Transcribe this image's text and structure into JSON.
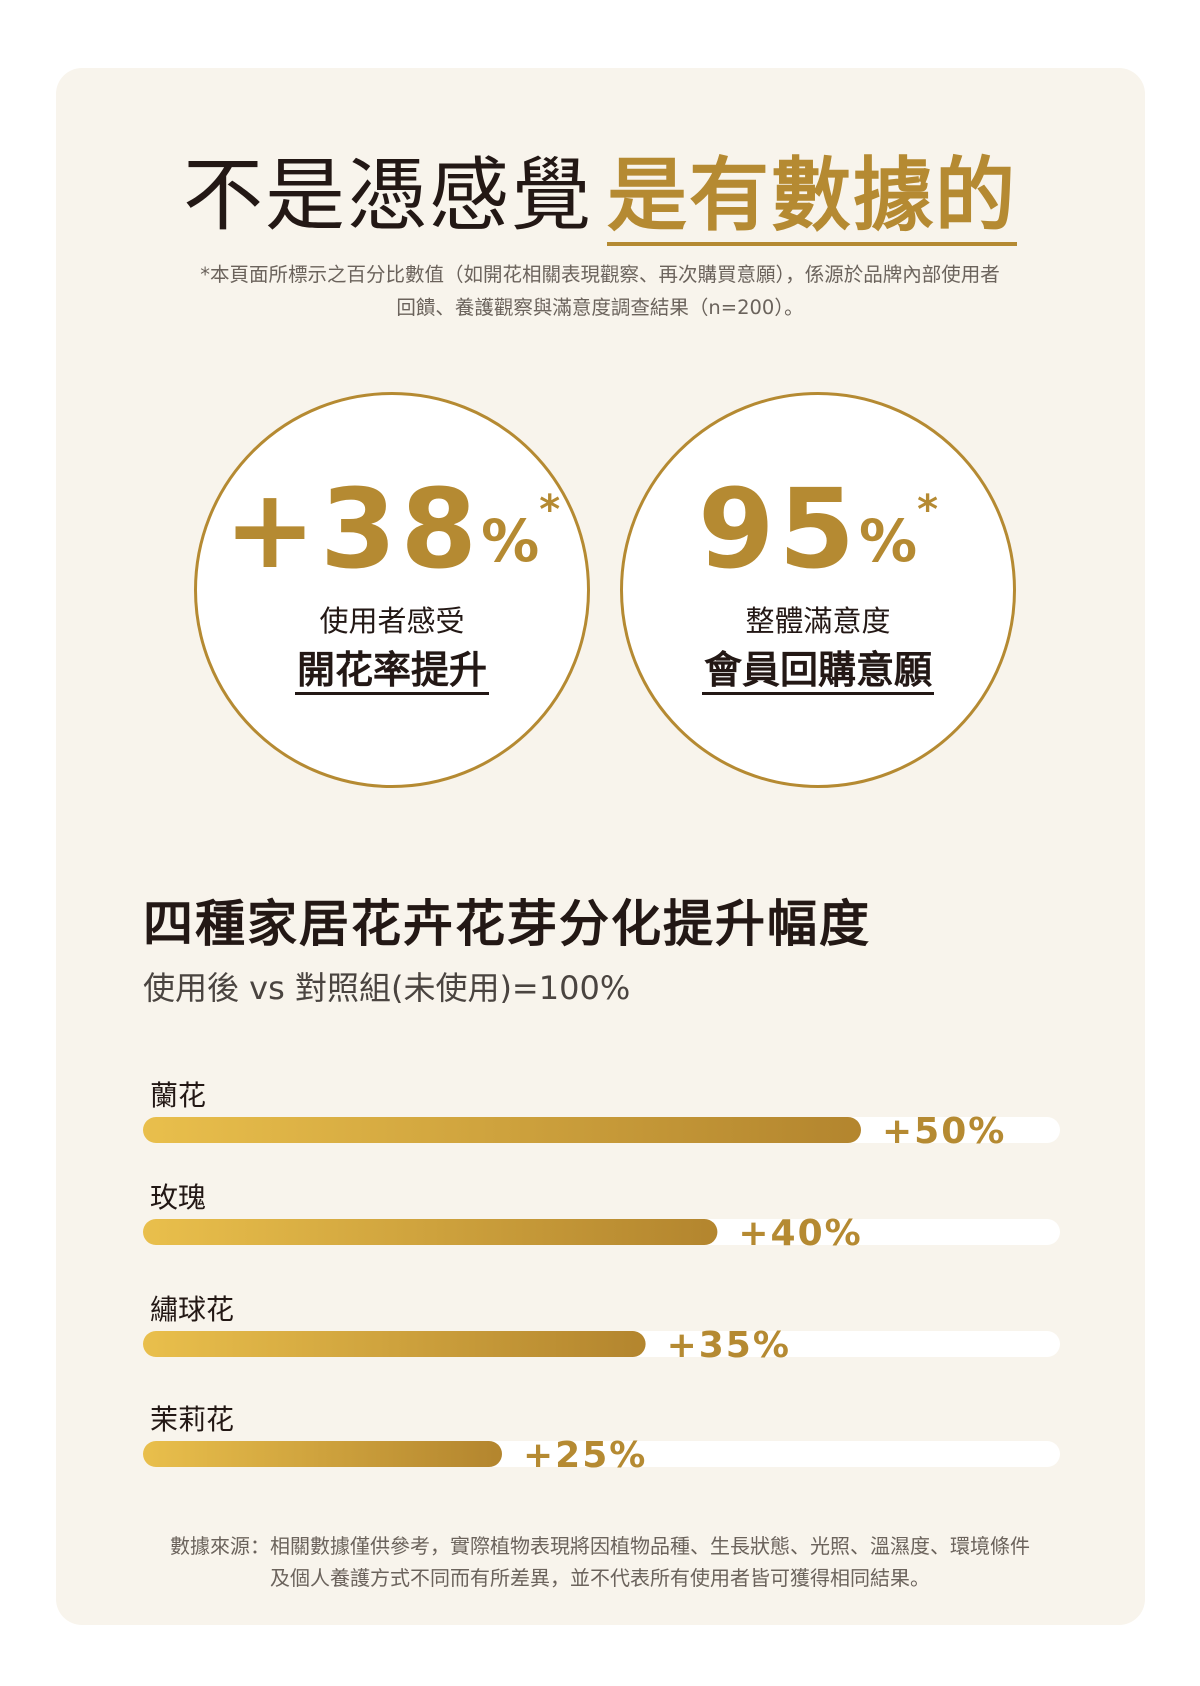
{
  "header": {
    "headline_plain": "不是憑感覺",
    "headline_accent": "是有數據的",
    "disclaimer_line1": "*本頁面所標示之百分比數值（如開花相關表現觀察、再次購買意願），係源於品牌內部使用者",
    "disclaimer_line2": "回饋、養護觀察與滿意度調查結果（n=200）。"
  },
  "stats": [
    {
      "value": "+38",
      "unit": "%",
      "asterisk": "*",
      "caption": "使用者感受",
      "highlight": "開花率提升"
    },
    {
      "value": "95",
      "unit": "%",
      "asterisk": "*",
      "caption": "整體滿意度",
      "highlight": "會員回購意願"
    }
  ],
  "section": {
    "title": "四種家居花卉花芽分化提升幅度",
    "subtitle": "使用後 vs 對照組(未使用)=100%"
  },
  "chart_data": {
    "type": "bar",
    "orientation": "horizontal",
    "title": "四種家居花卉花芽分化提升幅度",
    "subtitle": "使用後 vs 對照組(未使用)=100%",
    "categories": [
      "蘭花",
      "玫瑰",
      "繡球花",
      "茉莉花"
    ],
    "values": [
      50,
      40,
      35,
      25
    ],
    "value_labels": [
      "+50%",
      "+40%",
      "+35%",
      "+25%"
    ],
    "xlim": [
      0,
      60
    ],
    "grid": false,
    "colors": {
      "bar_start": "#e9bf4c",
      "bar_end": "#b3852e",
      "track": "#ffffff",
      "label": "#b58a32"
    }
  },
  "footer": {
    "line1": "數據來源：相關數據僅供參考，實際植物表現將因植物品種、生長狀態、光照、溫濕度、環境條件",
    "line2": "及個人養護方式不同而有所差異，並不代表所有使用者皆可獲得相同結果。"
  },
  "colors": {
    "accent": "#b58a32",
    "card_bg": "#f8f4ec",
    "text": "#231815"
  }
}
